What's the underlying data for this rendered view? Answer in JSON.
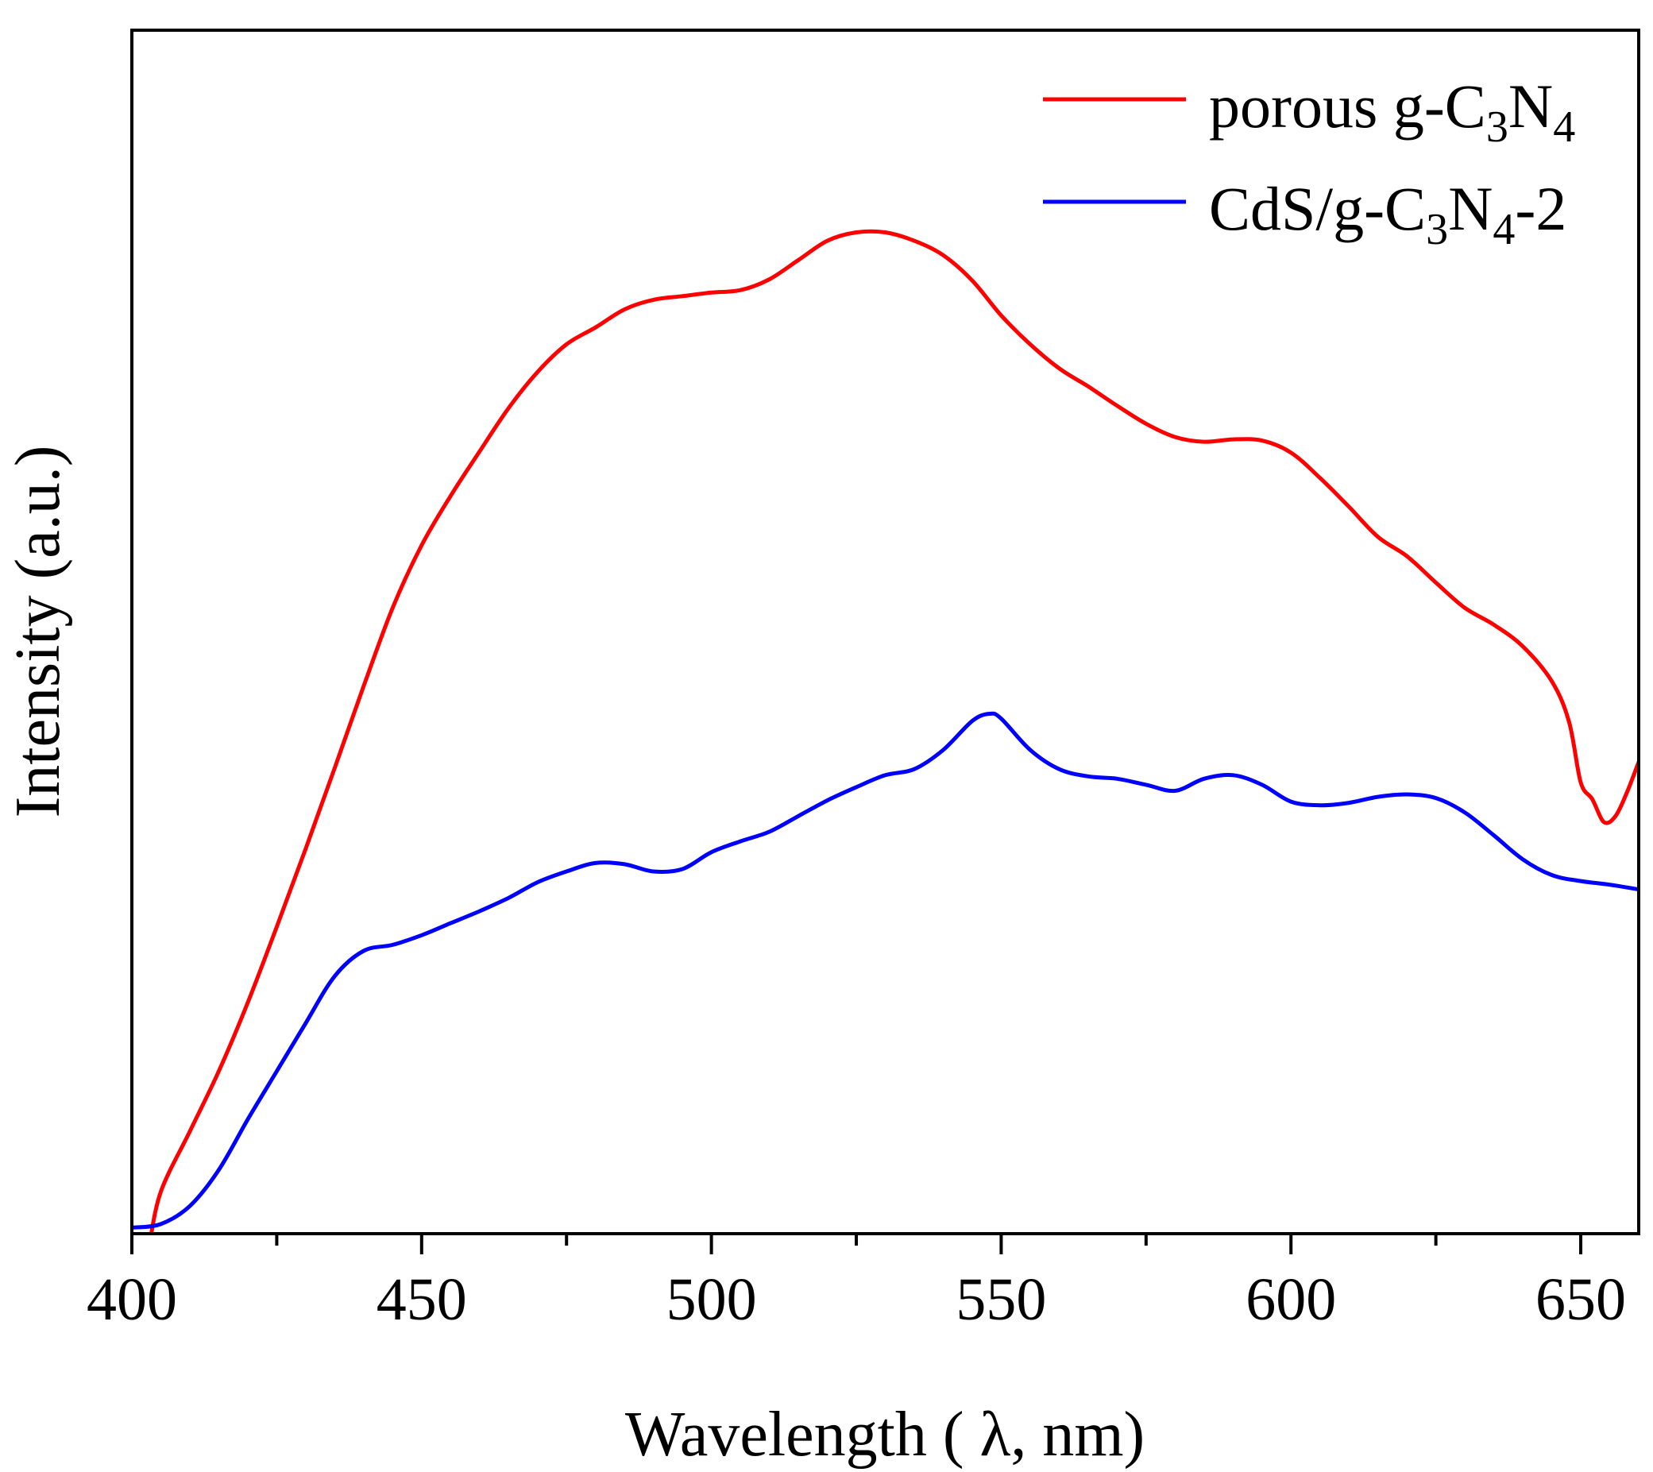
{
  "chart_data": {
    "type": "line",
    "title": "",
    "xlabel": "Wavelength ( λ, nm)",
    "ylabel": "Intensity (a.u.)",
    "xlim": [
      400,
      660
    ],
    "ylim": [
      0,
      100
    ],
    "x_ticks_major": [
      400,
      450,
      500,
      550,
      600,
      650
    ],
    "x_tick_labels": [
      "400",
      "450",
      "500",
      "550",
      "600",
      "650"
    ],
    "x_ticks_minor": [
      425,
      475,
      525,
      575,
      625
    ],
    "y_ticks_shown": false,
    "grid": false,
    "legend_position": "top-right",
    "series": [
      {
        "name": "porous g-C3N4",
        "legend_parts": [
          "porous g-C",
          "3",
          "N",
          "4",
          ""
        ],
        "color": "#ff0000",
        "x": [
          403,
          405,
          410,
          415,
          420,
          425,
          430,
          435,
          440,
          445,
          450,
          455,
          460,
          465,
          470,
          475,
          480,
          485,
          490,
          495,
          500,
          505,
          510,
          515,
          520,
          525,
          530,
          535,
          540,
          545,
          550,
          555,
          560,
          565,
          570,
          575,
          580,
          585,
          590,
          595,
          600,
          605,
          610,
          615,
          620,
          625,
          630,
          635,
          640,
          645,
          648,
          650,
          652,
          654,
          656,
          658,
          660
        ],
        "y": [
          -1,
          3.5,
          8.5,
          13.5,
          19.2,
          25.5,
          32,
          38.7,
          45.5,
          52,
          57.2,
          61.3,
          65,
          68.6,
          71.6,
          73.9,
          75.3,
          76.8,
          77.6,
          77.9,
          78.2,
          78.4,
          79.3,
          80.9,
          82.5,
          83.2,
          83.2,
          82.5,
          81.3,
          79.2,
          76.3,
          73.9,
          71.9,
          70.4,
          68.8,
          67.3,
          66.2,
          65.8,
          66.0,
          65.9,
          64.9,
          62.8,
          60.4,
          57.9,
          56.3,
          54.1,
          52.0,
          50.6,
          48.8,
          45.9,
          42.5,
          37.5,
          36.1,
          34.2,
          34.7,
          36.7,
          39.2
        ]
      },
      {
        "name": "CdS/g-C3N4-2",
        "legend_parts": [
          "CdS/g-C",
          "3",
          "N",
          "4",
          "-2"
        ],
        "color": "#0000ff",
        "x": [
          400,
          405,
          410,
          415,
          420,
          425,
          430,
          435,
          440,
          445,
          450,
          455,
          460,
          465,
          470,
          475,
          480,
          485,
          490,
          495,
          500,
          505,
          510,
          515,
          520,
          525,
          530,
          535,
          540,
          545,
          548,
          550,
          555,
          560,
          565,
          570,
          575,
          580,
          585,
          590,
          595,
          600,
          605,
          610,
          615,
          620,
          625,
          630,
          635,
          640,
          645,
          650,
          655,
          660
        ],
        "y": [
          0.5,
          0.8,
          2.3,
          5.3,
          9.5,
          13.5,
          17.5,
          21.4,
          23.5,
          24.0,
          24.8,
          25.8,
          26.8,
          27.9,
          29.2,
          30.1,
          30.8,
          30.7,
          30.1,
          30.3,
          31.7,
          32.6,
          33.4,
          34.7,
          36.0,
          37.1,
          38.1,
          38.6,
          40.2,
          42.6,
          43.2,
          42.8,
          40.2,
          38.6,
          38.0,
          37.8,
          37.3,
          36.8,
          37.8,
          38.1,
          37.3,
          35.9,
          35.6,
          35.8,
          36.3,
          36.5,
          36.2,
          35.0,
          33.1,
          31.1,
          29.8,
          29.3,
          29.0,
          28.6
        ]
      }
    ]
  }
}
